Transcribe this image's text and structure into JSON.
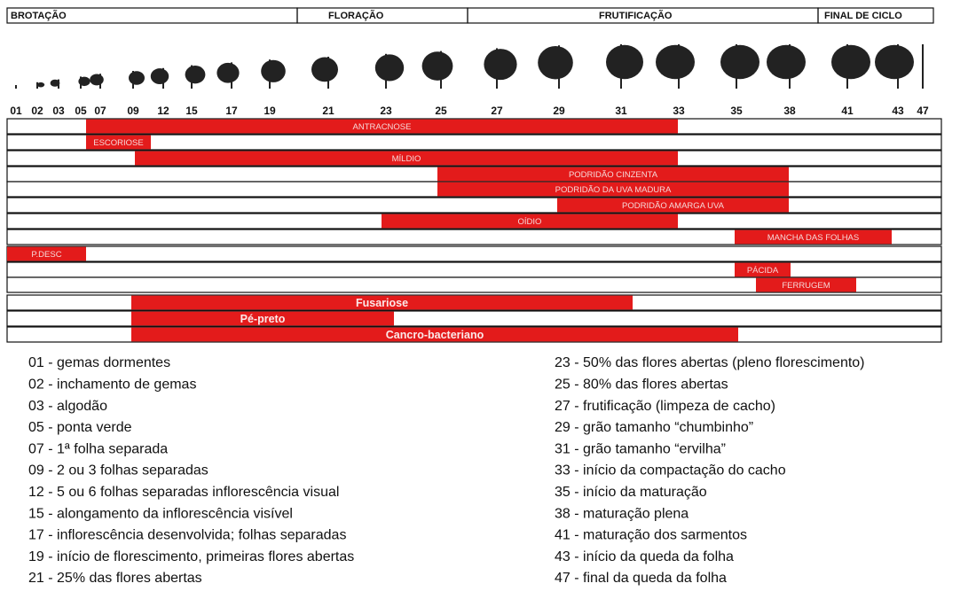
{
  "phases": [
    "BROTAÇÃO",
    "FLORAÇÃO",
    "FRUTIFICAÇÃO",
    "FINAL DE CICLO"
  ],
  "stages": [
    "01",
    "02",
    "03",
    "05",
    "07",
    "09",
    "12",
    "15",
    "17",
    "19",
    "21",
    "23",
    "25",
    "27",
    "29",
    "31",
    "33",
    "35",
    "38",
    "41",
    "43",
    "47"
  ],
  "rows": [
    {
      "label": "ANTRACNOSE"
    },
    {
      "label": "ESCORIOSE"
    },
    {
      "label": "MÍLDIO"
    },
    {
      "label": "PODRIDÃO CINZENTA"
    },
    {
      "label": "PODRIDÃO DA UVA MADURA"
    },
    {
      "label": "PODRIDÃO AMARGA UVA"
    },
    {
      "label": "OÍDIO"
    },
    {
      "label": "MANCHA DAS FOLHAS"
    },
    {
      "label": "P.DESC"
    },
    {
      "label": "PÁCIDA"
    },
    {
      "label": "FERRUGEM"
    },
    {
      "label": "Fusariose"
    },
    {
      "label": "Pé-preto"
    },
    {
      "label": "Cancro-bacteriano"
    }
  ],
  "legend": [
    "01 - gemas dormentes",
    "02 - inchamento de gemas",
    "03 - algodão",
    "05 - ponta verde",
    "07 - 1ª folha separada",
    "09 - 2 ou 3 folhas separadas",
    "12 - 5 ou 6 folhas separadas inflorescência visual",
    "15 - alongamento da inflorescência visível",
    "17 - inflorescência desenvolvida; folhas separadas",
    "19 - início de florescimento, primeiras flores abertas",
    "21 - 25% das flores abertas",
    "23 - 50% das flores abertas (pleno florescimento)",
    "25 - 80% das flores abertas",
    "27 - frutificação (limpeza de cacho)",
    "29 - grão tamanho “chumbinho”",
    "31 - grão tamanho “ervilha”",
    "33 - início da compactação do cacho",
    "35 - início da maturação",
    "38 - maturação plena",
    "41 - maturação dos sarmentos",
    "43 - início da queda da folha",
    "47 - final da queda da folha"
  ]
}
